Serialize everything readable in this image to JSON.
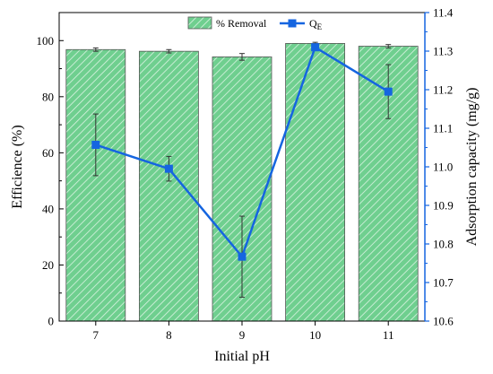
{
  "chart_data": {
    "type": "bar",
    "categories": [
      "7",
      "8",
      "9",
      "10",
      "11"
    ],
    "xlabel": "Initial pH",
    "ylabel": "Efficience (%)",
    "ylabel_right": "Adsorption capacity (mg/g)",
    "ylim": [
      0,
      110
    ],
    "ylim_right": [
      10.6,
      11.4
    ],
    "yticks": [
      "0",
      "20",
      "40",
      "60",
      "80",
      "100"
    ],
    "yticks_right": [
      "10.6",
      "10.7",
      "10.8",
      "10.9",
      "11.0",
      "11.1",
      "11.2",
      "11.3",
      "11.4"
    ],
    "legend_position": "top-center",
    "grid": false,
    "series": [
      {
        "name": "% Removal",
        "type": "bar",
        "axis": "left",
        "values": [
          96.8,
          96.2,
          94.2,
          99.0,
          98.0
        ],
        "errors": [
          0.6,
          0.6,
          1.2,
          0.4,
          0.6
        ],
        "color": "#6fcf8f"
      },
      {
        "name": "Q",
        "name_subscript": "E",
        "type": "line",
        "axis": "right",
        "values": [
          11.057,
          10.995,
          10.767,
          11.31,
          11.195
        ],
        "errors": [
          0.08,
          0.032,
          0.105,
          0.003,
          0.07
        ],
        "color": "#1565e0"
      }
    ]
  }
}
